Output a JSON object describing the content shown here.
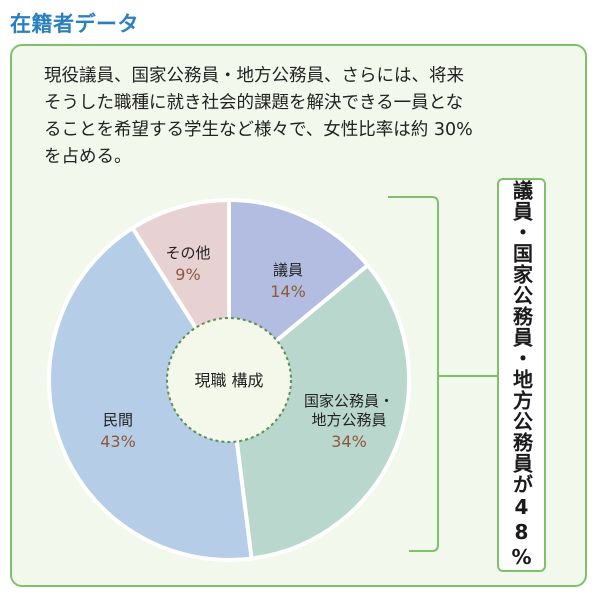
{
  "heading": "在籍者データ",
  "description": [
    "現役議員、国家公務員・地方公務員、さらには、将来",
    "そうした職種に就き社会的課題を解決できる一員とな",
    "ることを希望する学生など様々で、女性比率は約 30%",
    "を占める。"
  ],
  "chart_data": {
    "type": "pie",
    "style": "donut",
    "center_label": "現職 構成",
    "categories": [
      "議員",
      "国家公務員・地方公務員",
      "民間",
      "その他"
    ],
    "values": [
      14,
      34,
      43,
      9
    ],
    "label_lines": [
      [
        "議員"
      ],
      [
        "国家公務員・",
        "地方公務員"
      ],
      [
        "民間"
      ],
      [
        "その他"
      ]
    ],
    "percent_labels": [
      "14%",
      "34%",
      "43%",
      "9%"
    ],
    "colors": [
      "#b3bde2",
      "#bad7cd",
      "#b5cde7",
      "#e7d1d3"
    ],
    "start_angle_deg": 0,
    "direction": "clockwise"
  },
  "callout": "議員・国家公務員・地方公務員が48%",
  "colors": {
    "accent": "#2a7fc1",
    "border": "#7fc06a",
    "panel_bg": "#f3f8ec",
    "percent_text": "#8a5a3c"
  }
}
